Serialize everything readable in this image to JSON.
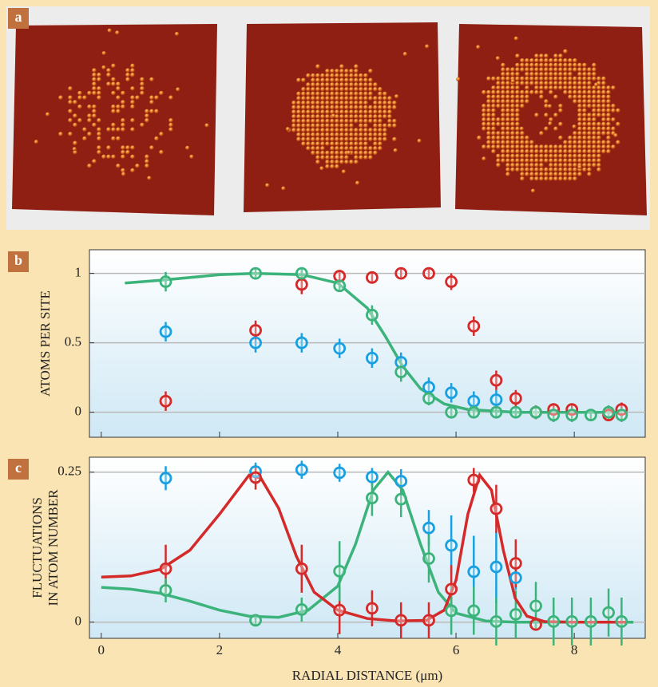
{
  "panel_a": {
    "label": "a"
  },
  "chart_data": [
    {
      "type": "scatter",
      "panel_label": "b",
      "ylabel": [
        "ATOMS PER SITE"
      ],
      "xlim": [
        -0.2,
        9.2
      ],
      "xticks": [
        0,
        2,
        4,
        6,
        8
      ],
      "show_xtick_labels": false,
      "ylim": [
        -0.18,
        1.17
      ],
      "yticks": [
        0,
        0.5,
        1
      ],
      "grid": true,
      "series": [
        {
          "color": "#3bb37a",
          "mode": "line",
          "x": [
            0.4,
            1,
            2,
            2.6,
            3.4,
            4,
            4.5,
            4.8,
            5.1,
            5.4,
            5.8,
            6.2,
            7,
            8,
            8.8
          ],
          "values": [
            0.93,
            0.95,
            0.99,
            1.0,
            0.99,
            0.93,
            0.75,
            0.55,
            0.33,
            0.17,
            0.06,
            0.02,
            0,
            0,
            0
          ]
        },
        {
          "color": "#1aa0e0",
          "mode": "markers",
          "x": [
            1.09,
            2.61,
            3.39,
            4.03,
            4.58,
            5.07,
            5.54,
            5.92,
            6.3,
            6.68
          ],
          "values": [
            0.58,
            0.5,
            0.5,
            0.46,
            0.39,
            0.36,
            0.18,
            0.14,
            0.08,
            0.09
          ],
          "errors": [
            0.07,
            0.07,
            0.07,
            0.07,
            0.07,
            0.07,
            0.07,
            0.07,
            0.07,
            0.07
          ]
        },
        {
          "color": "#d42a2a",
          "mode": "markers",
          "x": [
            1.09,
            2.61,
            3.39,
            4.03,
            4.58,
            5.07,
            5.54,
            5.92,
            6.3,
            6.68,
            7.01,
            7.35,
            7.65,
            7.96,
            8.58,
            8.8
          ],
          "values": [
            0.08,
            0.59,
            0.92,
            0.98,
            0.97,
            1.0,
            1.0,
            0.94,
            0.62,
            0.23,
            0.1,
            0.0,
            0.02,
            0.02,
            -0.02,
            0.02
          ],
          "errors": [
            0.07,
            0.07,
            0.07,
            0.03,
            0.03,
            0.03,
            0.03,
            0.06,
            0.07,
            0.07,
            0.06,
            0.05,
            0.03,
            0.03,
            0.03,
            0.05
          ]
        },
        {
          "color": "#3bb37a",
          "mode": "markers",
          "x": [
            1.09,
            2.61,
            3.39,
            4.03,
            4.58,
            5.07,
            5.54,
            5.92,
            6.3,
            6.68,
            7.01,
            7.35,
            7.65,
            7.96,
            8.28,
            8.58,
            8.8
          ],
          "values": [
            0.94,
            1.0,
            1.0,
            0.91,
            0.7,
            0.29,
            0.1,
            0.0,
            0.0,
            0.0,
            0.0,
            0.0,
            -0.02,
            -0.02,
            -0.02,
            0.0,
            -0.02
          ],
          "errors": [
            0.07,
            0.03,
            0.03,
            0.04,
            0.07,
            0.07,
            0.05,
            0.04,
            0.04,
            0.04,
            0.04,
            0.05,
            0.05,
            0.05,
            0.04,
            0.05,
            0.05
          ]
        }
      ]
    },
    {
      "type": "scatter",
      "panel_label": "c",
      "ylabel": [
        "FLUCTUATIONS",
        "IN ATOM NUMBER"
      ],
      "xlabel": "RADIAL DISTANCE (μm)",
      "xlim": [
        -0.2,
        9.2
      ],
      "xticks": [
        0,
        2,
        4,
        6,
        8
      ],
      "show_xtick_labels": true,
      "ylim": [
        -0.027,
        0.275
      ],
      "yticks": [
        0,
        0.25
      ],
      "grid": true,
      "series": [
        {
          "color": "#3bb37a",
          "mode": "line",
          "x": [
            0,
            0.5,
            1,
            1.5,
            2,
            2.5,
            3,
            3.5,
            4,
            4.3,
            4.6,
            4.85,
            5.1,
            5.4,
            5.7,
            6,
            6.5,
            7,
            9
          ],
          "values": [
            0.058,
            0.055,
            0.048,
            0.035,
            0.02,
            0.01,
            0.008,
            0.02,
            0.06,
            0.13,
            0.22,
            0.25,
            0.22,
            0.13,
            0.05,
            0.015,
            0.002,
            0,
            0
          ]
        },
        {
          "color": "#d42a2a",
          "mode": "line",
          "x": [
            0,
            0.5,
            1,
            1.5,
            2,
            2.5,
            2.7,
            3,
            3.3,
            3.6,
            4,
            4.5,
            5,
            5.5,
            5.8,
            6,
            6.2,
            6.4,
            6.6,
            6.8,
            7,
            7.2,
            7.5,
            8,
            8.9
          ],
          "values": [
            0.075,
            0.077,
            0.088,
            0.12,
            0.18,
            0.245,
            0.24,
            0.19,
            0.11,
            0.05,
            0.02,
            0.006,
            0.002,
            0.003,
            0.02,
            0.07,
            0.18,
            0.245,
            0.22,
            0.12,
            0.04,
            0.01,
            0.001,
            0,
            0
          ]
        },
        {
          "color": "#1aa0e0",
          "mode": "markers",
          "x": [
            1.09,
            2.61,
            3.39,
            4.03,
            4.58,
            5.07,
            5.54,
            5.92,
            6.3,
            6.68,
            7.01
          ],
          "values": [
            0.24,
            0.251,
            0.254,
            0.249,
            0.242,
            0.235,
            0.157,
            0.128,
            0.084,
            0.092,
            0.074
          ],
          "errors": [
            0.02,
            0.015,
            0.015,
            0.015,
            0.015,
            0.02,
            0.03,
            0.05,
            0.06,
            0.06,
            0.02
          ]
        },
        {
          "color": "#d42a2a",
          "mode": "markers",
          "x": [
            1.09,
            2.61,
            3.39,
            4.03,
            4.58,
            5.07,
            5.54,
            5.92,
            6.3,
            6.68,
            7.01,
            7.35
          ],
          "values": [
            0.089,
            0.241,
            0.089,
            0.02,
            0.023,
            0.003,
            0.003,
            0.055,
            0.237,
            0.189,
            0.098,
            -0.004
          ],
          "errors": [
            0.04,
            0.02,
            0.04,
            0.04,
            0.03,
            0.03,
            0.03,
            0.04,
            0.02,
            0.04,
            0.04,
            0.01
          ]
        },
        {
          "color": "#3bb37a",
          "mode": "markers",
          "x": [
            1.09,
            2.61,
            3.39,
            4.03,
            4.58,
            5.07,
            5.54,
            5.92,
            6.3,
            6.68,
            7.01,
            7.35,
            7.65,
            7.96,
            8.28,
            8.58,
            8.8
          ],
          "values": [
            0.053,
            0.003,
            0.021,
            0.085,
            0.207,
            0.205,
            0.106,
            0.019,
            0.019,
            0.001,
            0.013,
            0.027,
            0.001,
            0.001,
            0.001,
            0.016,
            0.001
          ],
          "errors": [
            0.02,
            0.01,
            0.02,
            0.05,
            0.03,
            0.03,
            0.04,
            0.04,
            0.04,
            0.04,
            0.04,
            0.04,
            0.04,
            0.04,
            0.04,
            0.04,
            0.04
          ]
        }
      ]
    }
  ]
}
